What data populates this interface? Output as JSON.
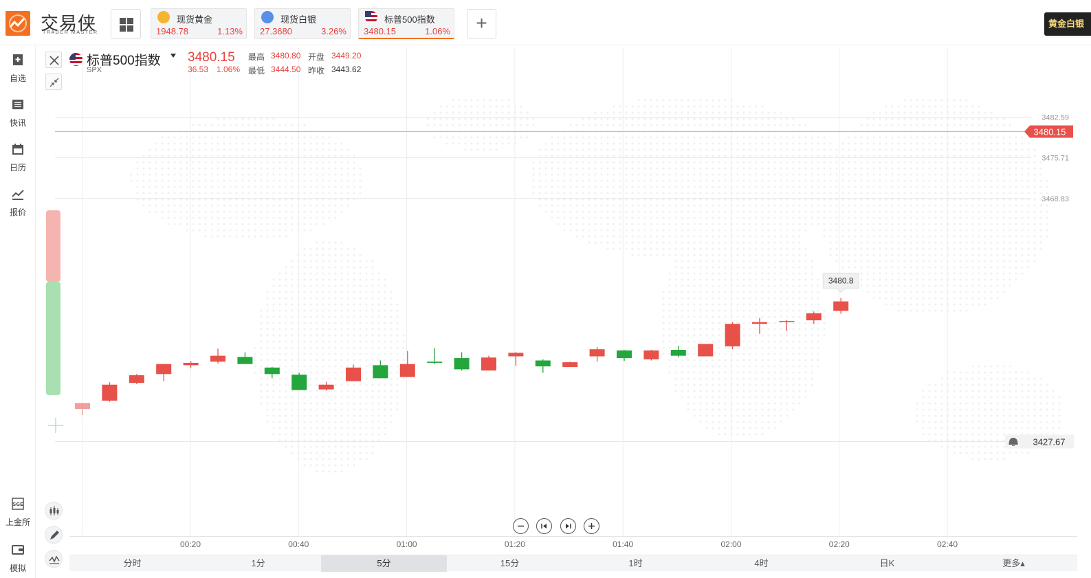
{
  "app": {
    "logo_text": "交易侠",
    "logo_sub": "TRADER MASTER",
    "corner_button": "黄金白银"
  },
  "tabs": [
    {
      "name": "现货黄金",
      "price": "1948.78",
      "pct": "1.13%",
      "icon": "gold-coin-icon",
      "icon_color": "#f5b52e"
    },
    {
      "name": "现货白银",
      "price": "27.3680",
      "pct": "3.26%",
      "icon": "silver-coin-icon",
      "icon_color": "#5a8fe6"
    },
    {
      "name": "标普500指数",
      "price": "3480.15",
      "pct": "1.06%",
      "icon": "us-flag-icon",
      "icon_color": "#c8102e"
    }
  ],
  "sidebar": [
    {
      "label": "自选",
      "icon": "bookmark-plus-icon"
    },
    {
      "label": "快讯",
      "icon": "news-list-icon"
    },
    {
      "label": "日历",
      "icon": "calendar-icon"
    },
    {
      "label": "报价",
      "icon": "quote-line-icon"
    },
    {
      "label": "上金所",
      "icon": "sge-icon"
    },
    {
      "label": "模拟",
      "icon": "wallet-icon"
    }
  ],
  "symbol": {
    "name": "标普500指数",
    "code": "SPX",
    "price": "3480.15",
    "change": "36.53",
    "change_pct": "1.06%",
    "high_label": "最高",
    "high": "3480.80",
    "open_label": "开盘",
    "open": "3449.20",
    "low_label": "最低",
    "low": "3444.50",
    "prev_label": "昨收",
    "prev": "3443.62"
  },
  "colors": {
    "up": "#e8504a",
    "down": "#23a63c",
    "accent": "#f27022"
  },
  "chart_data": {
    "type": "candlestick",
    "ylim": [
      3427.67,
      3482.59
    ],
    "y_ticks": [
      "3482.59",
      "3475.71",
      "3468.83"
    ],
    "x_ticks": [
      "00:20",
      "00:40",
      "01:00",
      "01:20",
      "01:40",
      "02:00",
      "02:20",
      "02:40"
    ],
    "current_price_label": "3480.15",
    "alert_price_label": "3427.67",
    "high_tooltip": "3480.8",
    "candles": [
      {
        "o": 3433.2,
        "c": 3434.2,
        "h": 3434.2,
        "l": 3432.1
      },
      {
        "o": 3434.6,
        "c": 3437.3,
        "h": 3437.7,
        "l": 3434.4
      },
      {
        "o": 3437.6,
        "c": 3438.9,
        "h": 3439.1,
        "l": 3437.4
      },
      {
        "o": 3439.1,
        "c": 3440.8,
        "h": 3440.8,
        "l": 3437.9
      },
      {
        "o": 3440.6,
        "c": 3441.0,
        "h": 3441.3,
        "l": 3440.1
      },
      {
        "o": 3441.2,
        "c": 3442.2,
        "h": 3443.4,
        "l": 3440.9
      },
      {
        "o": 3442.0,
        "c": 3440.8,
        "h": 3442.8,
        "l": 3440.8
      },
      {
        "o": 3440.2,
        "c": 3439.1,
        "h": 3440.3,
        "l": 3438.4
      },
      {
        "o": 3439.0,
        "c": 3436.4,
        "h": 3439.3,
        "l": 3436.4
      },
      {
        "o": 3436.5,
        "c": 3437.3,
        "h": 3437.8,
        "l": 3436.3
      },
      {
        "o": 3437.9,
        "c": 3440.2,
        "h": 3440.7,
        "l": 3437.9
      },
      {
        "o": 3440.6,
        "c": 3438.4,
        "h": 3441.4,
        "l": 3438.4
      },
      {
        "o": 3438.6,
        "c": 3440.8,
        "h": 3443.0,
        "l": 3438.6
      },
      {
        "o": 3441.2,
        "c": 3441.0,
        "h": 3443.5,
        "l": 3440.8
      },
      {
        "o": 3441.8,
        "c": 3439.9,
        "h": 3442.8,
        "l": 3439.7
      },
      {
        "o": 3439.7,
        "c": 3441.9,
        "h": 3442.2,
        "l": 3439.7
      },
      {
        "o": 3442.1,
        "c": 3442.7,
        "h": 3442.8,
        "l": 3440.5
      },
      {
        "o": 3441.4,
        "c": 3440.4,
        "h": 3441.6,
        "l": 3439.3
      },
      {
        "o": 3440.3,
        "c": 3441.1,
        "h": 3441.2,
        "l": 3440.3
      },
      {
        "o": 3442.1,
        "c": 3443.3,
        "h": 3443.7,
        "l": 3441.2
      },
      {
        "o": 3443.1,
        "c": 3441.8,
        "h": 3443.2,
        "l": 3441.3
      },
      {
        "o": 3441.6,
        "c": 3443.1,
        "h": 3443.2,
        "l": 3441.4
      },
      {
        "o": 3443.2,
        "c": 3442.2,
        "h": 3443.9,
        "l": 3441.9
      },
      {
        "o": 3442.1,
        "c": 3444.2,
        "h": 3444.2,
        "l": 3442.1
      },
      {
        "o": 3443.8,
        "c": 3447.6,
        "h": 3447.9,
        "l": 3443.3
      },
      {
        "o": 3447.6,
        "c": 3447.9,
        "h": 3448.6,
        "l": 3445.9
      },
      {
        "o": 3448.1,
        "c": 3448.1,
        "h": 3448.2,
        "l": 3446.4
      },
      {
        "o": 3448.2,
        "c": 3449.4,
        "h": 3449.7,
        "l": 3447.6
      },
      {
        "o": 3449.8,
        "c": 3451.4,
        "h": 3452.0,
        "l": 3449.3
      }
    ]
  },
  "tools": [
    {
      "icon": "candlestick-icon"
    },
    {
      "icon": "pencil-icon"
    },
    {
      "icon": "indicator-wave-icon"
    }
  ],
  "zoom_controls": [
    {
      "icon": "zoom-out-icon"
    },
    {
      "icon": "step-back-icon"
    },
    {
      "icon": "step-forward-icon"
    },
    {
      "icon": "zoom-in-icon"
    }
  ],
  "periods": [
    {
      "label": "分时"
    },
    {
      "label": "1分"
    },
    {
      "label": "5分"
    },
    {
      "label": "15分"
    },
    {
      "label": "1时"
    },
    {
      "label": "4时"
    },
    {
      "label": "日K"
    },
    {
      "label": "更多▴"
    }
  ],
  "active_period": "5分"
}
